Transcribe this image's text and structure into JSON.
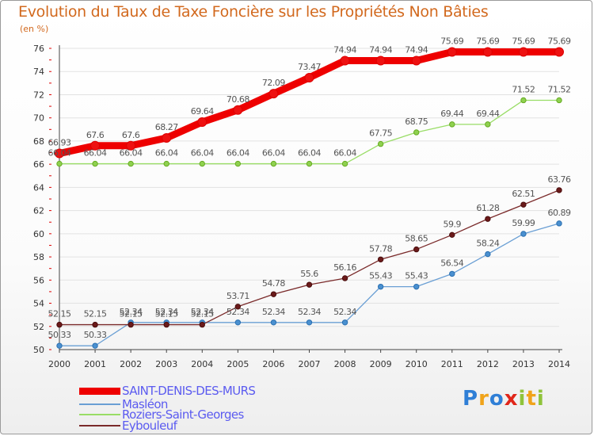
{
  "title": "Evolution du Taux de Taxe Foncière sur les Propriétés Non Bâties",
  "unit_label": "(en %)",
  "logo_text": "Proxiti",
  "chart_data": {
    "type": "line",
    "title": "Evolution du Taux de Taxe Foncière sur les Propriétés Non Bâties",
    "ylabel": "(en %)",
    "xlabel": "",
    "ylim": [
      50,
      76
    ],
    "yticks": [
      50,
      52,
      54,
      56,
      58,
      60,
      62,
      64,
      66,
      68,
      70,
      72,
      74,
      76
    ],
    "grid": "horizontal",
    "legend_position": "bottom-left",
    "categories": [
      "2000",
      "2001",
      "2002",
      "2003",
      "2004",
      "2005",
      "2006",
      "2007",
      "2008",
      "2009",
      "2010",
      "2011",
      "2012",
      "2013",
      "2014"
    ],
    "series": [
      {
        "name": "SAINT-DENIS-DES-MURS",
        "color": "#ee0000",
        "values": [
          66.93,
          67.6,
          67.6,
          68.27,
          69.64,
          70.68,
          72.09,
          73.47,
          74.94,
          74.94,
          74.94,
          75.69,
          75.69,
          75.69,
          75.69
        ]
      },
      {
        "name": "Masléon",
        "color": "#6a9fd4",
        "values": [
          50.33,
          50.33,
          52.34,
          52.34,
          52.34,
          52.34,
          52.34,
          52.34,
          52.34,
          55.43,
          55.43,
          56.54,
          58.24,
          59.99,
          60.89
        ]
      },
      {
        "name": "Roziers-Saint-Georges",
        "color": "#99dd66",
        "values": [
          66.04,
          66.04,
          66.04,
          66.04,
          66.04,
          66.04,
          66.04,
          66.04,
          66.04,
          67.75,
          68.75,
          69.44,
          69.44,
          71.52,
          71.52
        ]
      },
      {
        "name": "Eybouleuf",
        "color": "#7a2a2a",
        "values": [
          52.15,
          52.15,
          52.15,
          52.15,
          52.15,
          53.71,
          54.78,
          55.6,
          56.16,
          57.78,
          58.65,
          59.9,
          61.28,
          62.51,
          63.76
        ]
      }
    ]
  }
}
